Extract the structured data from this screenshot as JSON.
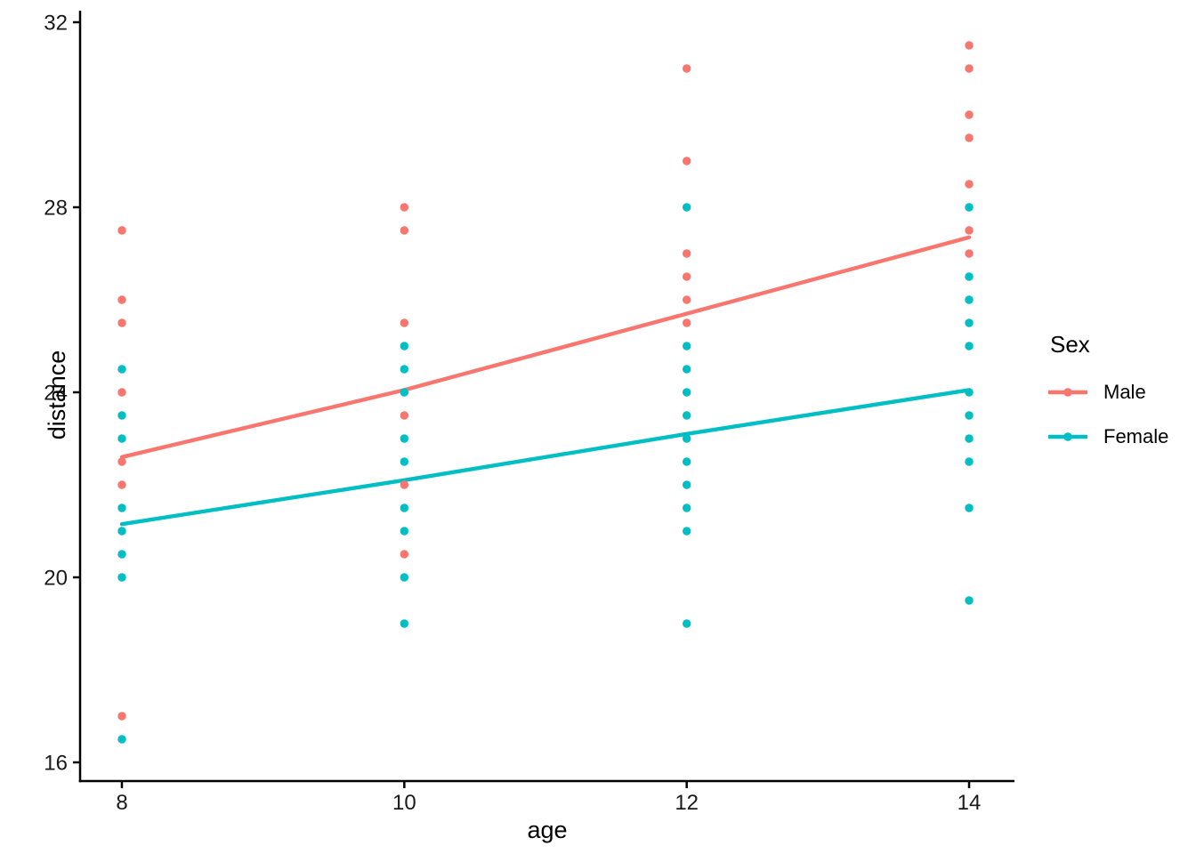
{
  "chart_data": {
    "type": "scatter",
    "title": "",
    "xlabel": "age",
    "ylabel": "distance",
    "x_ticks": [
      8,
      10,
      12,
      14
    ],
    "y_ticks": [
      16,
      20,
      24,
      28,
      32
    ],
    "xlim": [
      7.7,
      14.3
    ],
    "ylim": [
      15.6,
      32.25
    ],
    "grid": "off",
    "background": "#ffffff",
    "axis_color": "#000000",
    "legend": {
      "title": "Sex",
      "position": "right",
      "entries": [
        {
          "label": "Male",
          "color": "#F8766D"
        },
        {
          "label": "Female",
          "color": "#00BFC4"
        }
      ]
    },
    "series": [
      {
        "name": "Male",
        "color": "#F8766D",
        "points": [
          [
            8,
            27.5
          ],
          [
            8,
            26
          ],
          [
            8,
            25.5
          ],
          [
            8,
            24
          ],
          [
            8,
            22.5
          ],
          [
            8,
            22
          ],
          [
            8,
            17
          ],
          [
            10,
            28
          ],
          [
            10,
            27.5
          ],
          [
            10,
            25.5
          ],
          [
            10,
            23.5
          ],
          [
            10,
            22
          ],
          [
            10,
            20.5
          ],
          [
            12,
            31
          ],
          [
            12,
            29
          ],
          [
            12,
            27
          ],
          [
            12,
            26.5
          ],
          [
            12,
            26
          ],
          [
            12,
            25.5
          ],
          [
            14,
            31.5
          ],
          [
            14,
            31
          ],
          [
            14,
            30
          ],
          [
            14,
            29.5
          ],
          [
            14,
            28.5
          ],
          [
            14,
            27.5
          ],
          [
            14,
            27
          ]
        ]
      },
      {
        "name": "Female",
        "color": "#00BFC4",
        "points": [
          [
            8,
            24.5
          ],
          [
            8,
            23.5
          ],
          [
            8,
            23
          ],
          [
            8,
            21.5
          ],
          [
            8,
            21
          ],
          [
            8,
            20.5
          ],
          [
            8,
            20
          ],
          [
            8,
            16.5
          ],
          [
            10,
            25
          ],
          [
            10,
            24.5
          ],
          [
            10,
            24
          ],
          [
            10,
            23
          ],
          [
            10,
            22.5
          ],
          [
            10,
            21.5
          ],
          [
            10,
            21
          ],
          [
            10,
            20
          ],
          [
            10,
            19
          ],
          [
            12,
            28
          ],
          [
            12,
            25
          ],
          [
            12,
            24.5
          ],
          [
            12,
            24
          ],
          [
            12,
            23.5
          ],
          [
            12,
            23
          ],
          [
            12,
            22.5
          ],
          [
            12,
            22
          ],
          [
            12,
            21.5
          ],
          [
            12,
            21
          ],
          [
            12,
            19
          ],
          [
            14,
            28
          ],
          [
            14,
            26.5
          ],
          [
            14,
            26
          ],
          [
            14,
            25.5
          ],
          [
            14,
            25
          ],
          [
            14,
            24
          ],
          [
            14,
            23.5
          ],
          [
            14,
            23
          ],
          [
            14,
            22.5
          ],
          [
            14,
            21.5
          ],
          [
            14,
            19.5
          ]
        ]
      }
    ],
    "trend_lines": [
      {
        "name": "Male",
        "color": "#F8766D",
        "points": [
          [
            8,
            22.6
          ],
          [
            10,
            24.05
          ],
          [
            12,
            25.7
          ],
          [
            14,
            27.35
          ]
        ]
      },
      {
        "name": "Female",
        "color": "#00BFC4",
        "points": [
          [
            8,
            21.15
          ],
          [
            10,
            22.1
          ],
          [
            12,
            23.1
          ],
          [
            14,
            24.05
          ]
        ]
      }
    ]
  }
}
